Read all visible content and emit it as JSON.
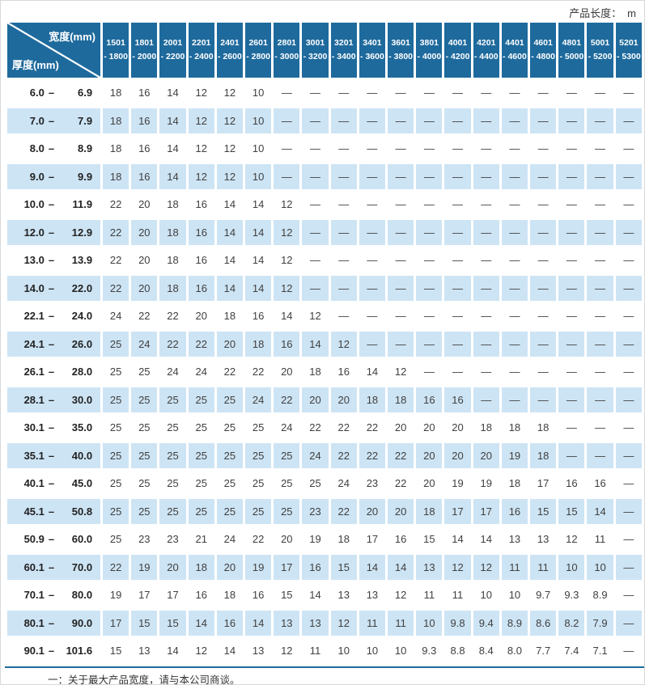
{
  "header": {
    "product_length_label": "产品长度：",
    "product_length_unit": "m"
  },
  "table": {
    "corner": {
      "width_label": "宽度(mm)",
      "thickness_label": "厚度(mm)"
    },
    "label_separator": "–",
    "columns": [
      {
        "l1": "1501",
        "l2": "- 1800"
      },
      {
        "l1": "1801",
        "l2": "- 2000"
      },
      {
        "l1": "2001",
        "l2": "- 2200"
      },
      {
        "l1": "2201",
        "l2": "- 2400"
      },
      {
        "l1": "2401",
        "l2": "- 2600"
      },
      {
        "l1": "2601",
        "l2": "- 2800"
      },
      {
        "l1": "2801",
        "l2": "- 3000"
      },
      {
        "l1": "3001",
        "l2": "- 3200"
      },
      {
        "l1": "3201",
        "l2": "- 3400"
      },
      {
        "l1": "3401",
        "l2": "- 3600"
      },
      {
        "l1": "3601",
        "l2": "- 3800"
      },
      {
        "l1": "3801",
        "l2": "- 4000"
      },
      {
        "l1": "4001",
        "l2": "- 4200"
      },
      {
        "l1": "4201",
        "l2": "- 4400"
      },
      {
        "l1": "4401",
        "l2": "- 4600"
      },
      {
        "l1": "4601",
        "l2": "- 4800"
      },
      {
        "l1": "4801",
        "l2": "- 5000"
      },
      {
        "l1": "5001",
        "l2": "- 5200"
      },
      {
        "l1": "5201",
        "l2": "- 5300"
      }
    ],
    "rows": [
      {
        "min": "6.0",
        "max": "6.9",
        "values": [
          "18",
          "16",
          "14",
          "12",
          "12",
          "10",
          "—",
          "—",
          "—",
          "—",
          "—",
          "—",
          "—",
          "—",
          "—",
          "—",
          "—",
          "—",
          "—"
        ]
      },
      {
        "min": "7.0",
        "max": "7.9",
        "values": [
          "18",
          "16",
          "14",
          "12",
          "12",
          "10",
          "—",
          "—",
          "—",
          "—",
          "—",
          "—",
          "—",
          "—",
          "—",
          "—",
          "—",
          "—",
          "—"
        ]
      },
      {
        "min": "8.0",
        "max": "8.9",
        "values": [
          "18",
          "16",
          "14",
          "12",
          "12",
          "10",
          "—",
          "—",
          "—",
          "—",
          "—",
          "—",
          "—",
          "—",
          "—",
          "—",
          "—",
          "—",
          "—"
        ]
      },
      {
        "min": "9.0",
        "max": "9.9",
        "values": [
          "18",
          "16",
          "14",
          "12",
          "12",
          "10",
          "—",
          "—",
          "—",
          "—",
          "—",
          "—",
          "—",
          "—",
          "—",
          "—",
          "—",
          "—",
          "—"
        ]
      },
      {
        "min": "10.0",
        "max": "11.9",
        "values": [
          "22",
          "20",
          "18",
          "16",
          "14",
          "14",
          "12",
          "—",
          "—",
          "—",
          "—",
          "—",
          "—",
          "—",
          "—",
          "—",
          "—",
          "—",
          "—"
        ]
      },
      {
        "min": "12.0",
        "max": "12.9",
        "values": [
          "22",
          "20",
          "18",
          "16",
          "14",
          "14",
          "12",
          "—",
          "—",
          "—",
          "—",
          "—",
          "—",
          "—",
          "—",
          "—",
          "—",
          "—",
          "—"
        ]
      },
      {
        "min": "13.0",
        "max": "13.9",
        "values": [
          "22",
          "20",
          "18",
          "16",
          "14",
          "14",
          "12",
          "—",
          "—",
          "—",
          "—",
          "—",
          "—",
          "—",
          "—",
          "—",
          "—",
          "—",
          "—"
        ]
      },
      {
        "min": "14.0",
        "max": "22.0",
        "values": [
          "22",
          "20",
          "18",
          "16",
          "14",
          "14",
          "12",
          "—",
          "—",
          "—",
          "—",
          "—",
          "—",
          "—",
          "—",
          "—",
          "—",
          "—",
          "—"
        ]
      },
      {
        "min": "22.1",
        "max": "24.0",
        "values": [
          "24",
          "22",
          "22",
          "20",
          "18",
          "16",
          "14",
          "12",
          "—",
          "—",
          "—",
          "—",
          "—",
          "—",
          "—",
          "—",
          "—",
          "—",
          "—"
        ]
      },
      {
        "min": "24.1",
        "max": "26.0",
        "values": [
          "25",
          "24",
          "22",
          "22",
          "20",
          "18",
          "16",
          "14",
          "12",
          "—",
          "—",
          "—",
          "—",
          "—",
          "—",
          "—",
          "—",
          "—",
          "—"
        ]
      },
      {
        "min": "26.1",
        "max": "28.0",
        "values": [
          "25",
          "25",
          "24",
          "24",
          "22",
          "22",
          "20",
          "18",
          "16",
          "14",
          "12",
          "—",
          "—",
          "—",
          "—",
          "—",
          "—",
          "—",
          "—"
        ]
      },
      {
        "min": "28.1",
        "max": "30.0",
        "values": [
          "25",
          "25",
          "25",
          "25",
          "25",
          "24",
          "22",
          "20",
          "20",
          "18",
          "18",
          "16",
          "16",
          "—",
          "—",
          "—",
          "—",
          "—",
          "—"
        ]
      },
      {
        "min": "30.1",
        "max": "35.0",
        "values": [
          "25",
          "25",
          "25",
          "25",
          "25",
          "25",
          "24",
          "22",
          "22",
          "22",
          "20",
          "20",
          "20",
          "18",
          "18",
          "18",
          "—",
          "—",
          "—"
        ]
      },
      {
        "min": "35.1",
        "max": "40.0",
        "values": [
          "25",
          "25",
          "25",
          "25",
          "25",
          "25",
          "25",
          "24",
          "22",
          "22",
          "22",
          "20",
          "20",
          "20",
          "19",
          "18",
          "—",
          "—",
          "—"
        ]
      },
      {
        "min": "40.1",
        "max": "45.0",
        "values": [
          "25",
          "25",
          "25",
          "25",
          "25",
          "25",
          "25",
          "25",
          "24",
          "23",
          "22",
          "20",
          "19",
          "19",
          "18",
          "17",
          "16",
          "16",
          "—"
        ]
      },
      {
        "min": "45.1",
        "max": "50.8",
        "values": [
          "25",
          "25",
          "25",
          "25",
          "25",
          "25",
          "25",
          "23",
          "22",
          "20",
          "20",
          "18",
          "17",
          "17",
          "16",
          "15",
          "15",
          "14",
          "—"
        ]
      },
      {
        "min": "50.9",
        "max": "60.0",
        "values": [
          "25",
          "23",
          "23",
          "21",
          "24",
          "22",
          "20",
          "19",
          "18",
          "17",
          "16",
          "15",
          "14",
          "14",
          "13",
          "13",
          "12",
          "11",
          "—"
        ]
      },
      {
        "min": "60.1",
        "max": "70.0",
        "values": [
          "22",
          "19",
          "20",
          "18",
          "20",
          "19",
          "17",
          "16",
          "15",
          "14",
          "14",
          "13",
          "12",
          "12",
          "11",
          "11",
          "10",
          "10",
          "—"
        ]
      },
      {
        "min": "70.1",
        "max": "80.0",
        "values": [
          "19",
          "17",
          "17",
          "16",
          "18",
          "16",
          "15",
          "14",
          "13",
          "13",
          "12",
          "11",
          "11",
          "10",
          "10",
          "9.7",
          "9.3",
          "8.9",
          "—"
        ]
      },
      {
        "min": "80.1",
        "max": "90.0",
        "values": [
          "17",
          "15",
          "15",
          "14",
          "16",
          "14",
          "13",
          "13",
          "12",
          "11",
          "11",
          "10",
          "9.8",
          "9.4",
          "8.9",
          "8.6",
          "8.2",
          "7.9",
          "—"
        ]
      },
      {
        "min": "90.1",
        "max": "101.6",
        "values": [
          "15",
          "13",
          "14",
          "12",
          "14",
          "13",
          "12",
          "11",
          "10",
          "10",
          "10",
          "9.3",
          "8.8",
          "8.4",
          "8.0",
          "7.7",
          "7.4",
          "7.1",
          "—"
        ]
      }
    ]
  },
  "footer": {
    "note": "一：关于最大产品宽度，请与本公司商谈。"
  },
  "colors": {
    "header_blue": "#1e6a9d",
    "row_blue": "#cde4f4",
    "accent_line": "#1d6a9e"
  }
}
